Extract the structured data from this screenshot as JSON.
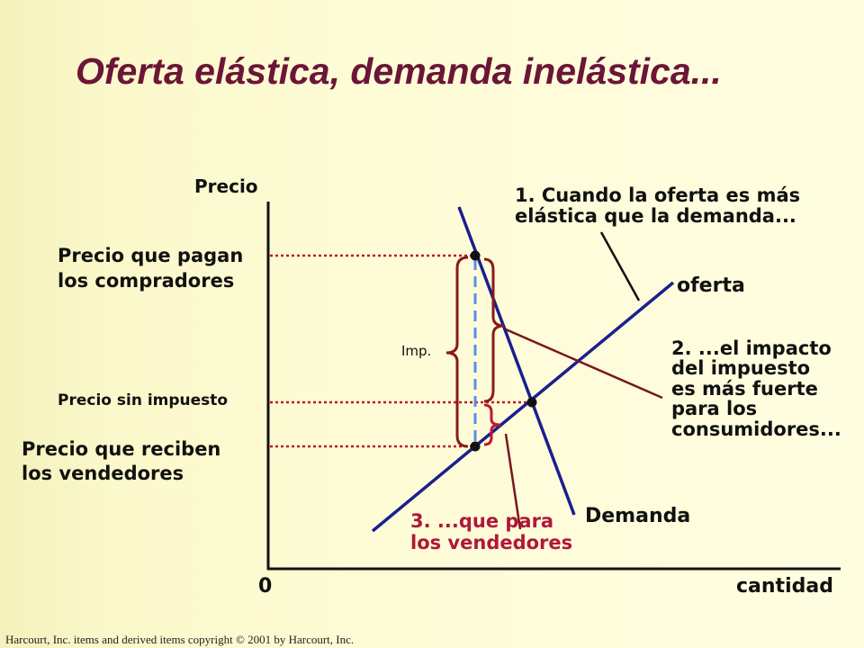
{
  "title": "Oferta elástica, demanda inelástica...",
  "axes": {
    "y_label": "Precio",
    "x_label": "cantidad",
    "origin": "0"
  },
  "prices": {
    "buyers_line1": "Precio que pagan",
    "buyers_line2": "los compradores",
    "no_tax": "Precio sin impuesto",
    "sellers_line1": "Precio que reciben",
    "sellers_line2": "los vendedores"
  },
  "tax_label": "Imp.",
  "curves": {
    "supply": "oferta",
    "demand": "Demanda"
  },
  "notes": {
    "note1_line1": "1. Cuando la oferta es más",
    "note1_line2": "elástica que la demanda...",
    "note2_line1": "2. ...el impacto",
    "note2_line2": "del impuesto",
    "note2_line3": "es más fuerte",
    "note2_line4": "para los",
    "note2_line5": "consumidores...",
    "note3_line1": "3. ...que para",
    "note3_line2": "los vendedores"
  },
  "colors": {
    "title": "#6b1538",
    "curves": "#1a1f8f",
    "dotted_guides": "#c0182e",
    "braces": "#8b1a1a",
    "tax_line": "#5a8ee8",
    "note3": "#b0173a"
  },
  "footer": {
    "copyright": "Harcourt, Inc. items and derived items copyright © 2001 by Harcourt, Inc."
  }
}
